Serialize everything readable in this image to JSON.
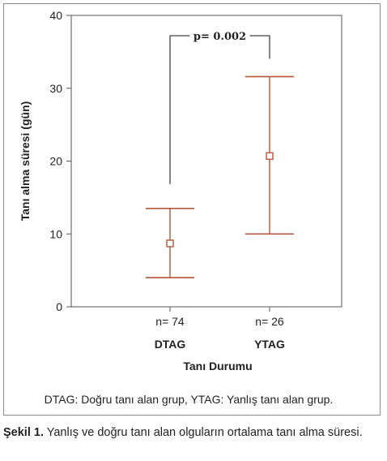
{
  "chart_data": {
    "type": "error_bar",
    "ylabel": "Tanı alma süresi (gün)",
    "xlabel": "Tanı Durumu",
    "ylim": [
      0,
      40
    ],
    "yticks": [
      "0",
      "10",
      "20",
      "30",
      "40"
    ],
    "groups": [
      {
        "category": "DTAG",
        "n_label": "n= 74",
        "mean": 8.7,
        "lower": 4.0,
        "upper": 13.5
      },
      {
        "category": "YTAG",
        "n_label": "n= 26",
        "mean": 20.7,
        "lower": 10.0,
        "upper": 31.6
      }
    ],
    "annotation": {
      "text": "p= 0.002"
    },
    "colors": {
      "marker": "#b5563a",
      "axis": "#555555"
    }
  },
  "note": "DTAG: Doğru tanı alan grup, YTAG: Yanlış tanı alan grup.",
  "caption": {
    "label": "Şekil 1.",
    "text": "Yanlış ve doğru tanı alan olguların ortalama tanı alma süresi."
  }
}
